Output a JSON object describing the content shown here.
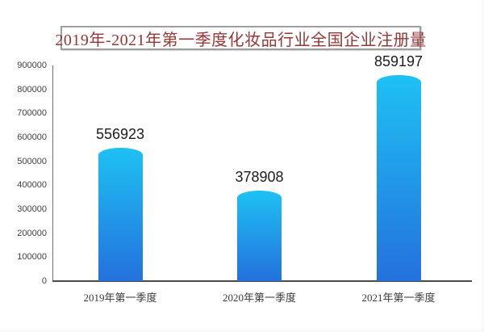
{
  "chart_data": {
    "type": "bar",
    "title": "2019年-2021年第一季度化妆品行业全国企业注册量",
    "categories": [
      "2019年第一季度",
      "2020年第一季度",
      "2021年第一季度"
    ],
    "values": [
      556923,
      378908,
      859197
    ],
    "data_labels": [
      "556923",
      "378908",
      "859197"
    ],
    "xlabel": "",
    "ylabel": "",
    "ylim": [
      0,
      900000
    ],
    "ytick_step": 100000,
    "yticks": [
      "0",
      "100000",
      "200000",
      "300000",
      "400000",
      "500000",
      "600000",
      "700000",
      "800000",
      "900000"
    ],
    "grid": false,
    "legend": "none"
  },
  "colors": {
    "background": "#ffffff",
    "title_text": "#953734",
    "title_border": "#9e9e9e",
    "bar_gradient_top": "#1ec1f3",
    "bar_gradient_bottom": "#2471dd",
    "y_axis_line": "#707070",
    "x_axis_line": "#4a4a4a",
    "tick_label": "#3f3f3f",
    "data_label": "#1c1c1c"
  }
}
